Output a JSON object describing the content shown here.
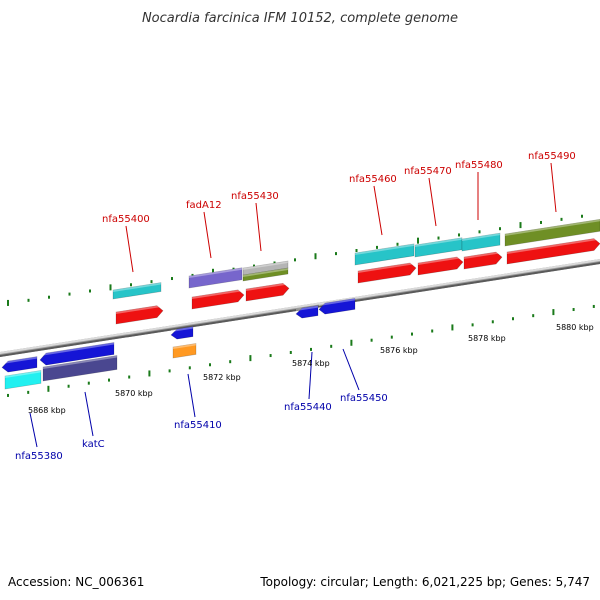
{
  "title": "Nocardia farcinica IFM 10152, complete genome",
  "footer": {
    "accession": "Accession: NC_006361",
    "summary": "Topology: circular; Length: 6,021,225 bp; Genes: 5,747"
  },
  "colors": {
    "forward_label": "#cc0000",
    "reverse_label": "#0000aa",
    "tick": "#1a7a1a",
    "backbone": "#8c8c8c"
  },
  "axis": {
    "kbp_labels": [
      "5868 kbp",
      "5870 kbp",
      "5872 kbp",
      "5874 kbp",
      "5876 kbp",
      "5878 kbp",
      "5880 kbp"
    ]
  },
  "genes_top": [
    {
      "name": "nfa55400"
    },
    {
      "name": "fadA12"
    },
    {
      "name": "nfa55430"
    },
    {
      "name": "nfa55460"
    },
    {
      "name": "nfa55470"
    },
    {
      "name": "nfa55480"
    },
    {
      "name": "nfa55490"
    }
  ],
  "genes_bottom": [
    {
      "name": "nfa55380"
    },
    {
      "name": "katC"
    },
    {
      "name": "nfa55410"
    },
    {
      "name": "nfa55440"
    },
    {
      "name": "nfa55450"
    }
  ],
  "track_colors": {
    "cog_cyan": "#27c4c8",
    "cog_blue": "#1515d6",
    "cog_purple": "#7766cc",
    "cog_gray": "#b5b5b5",
    "cog_olive": "#6f8f25",
    "cog_navy": "#4a4790",
    "cog_orange": "#ff9922",
    "cog_lightcyan": "#22f0f0",
    "strand_red": "#ee1111"
  }
}
